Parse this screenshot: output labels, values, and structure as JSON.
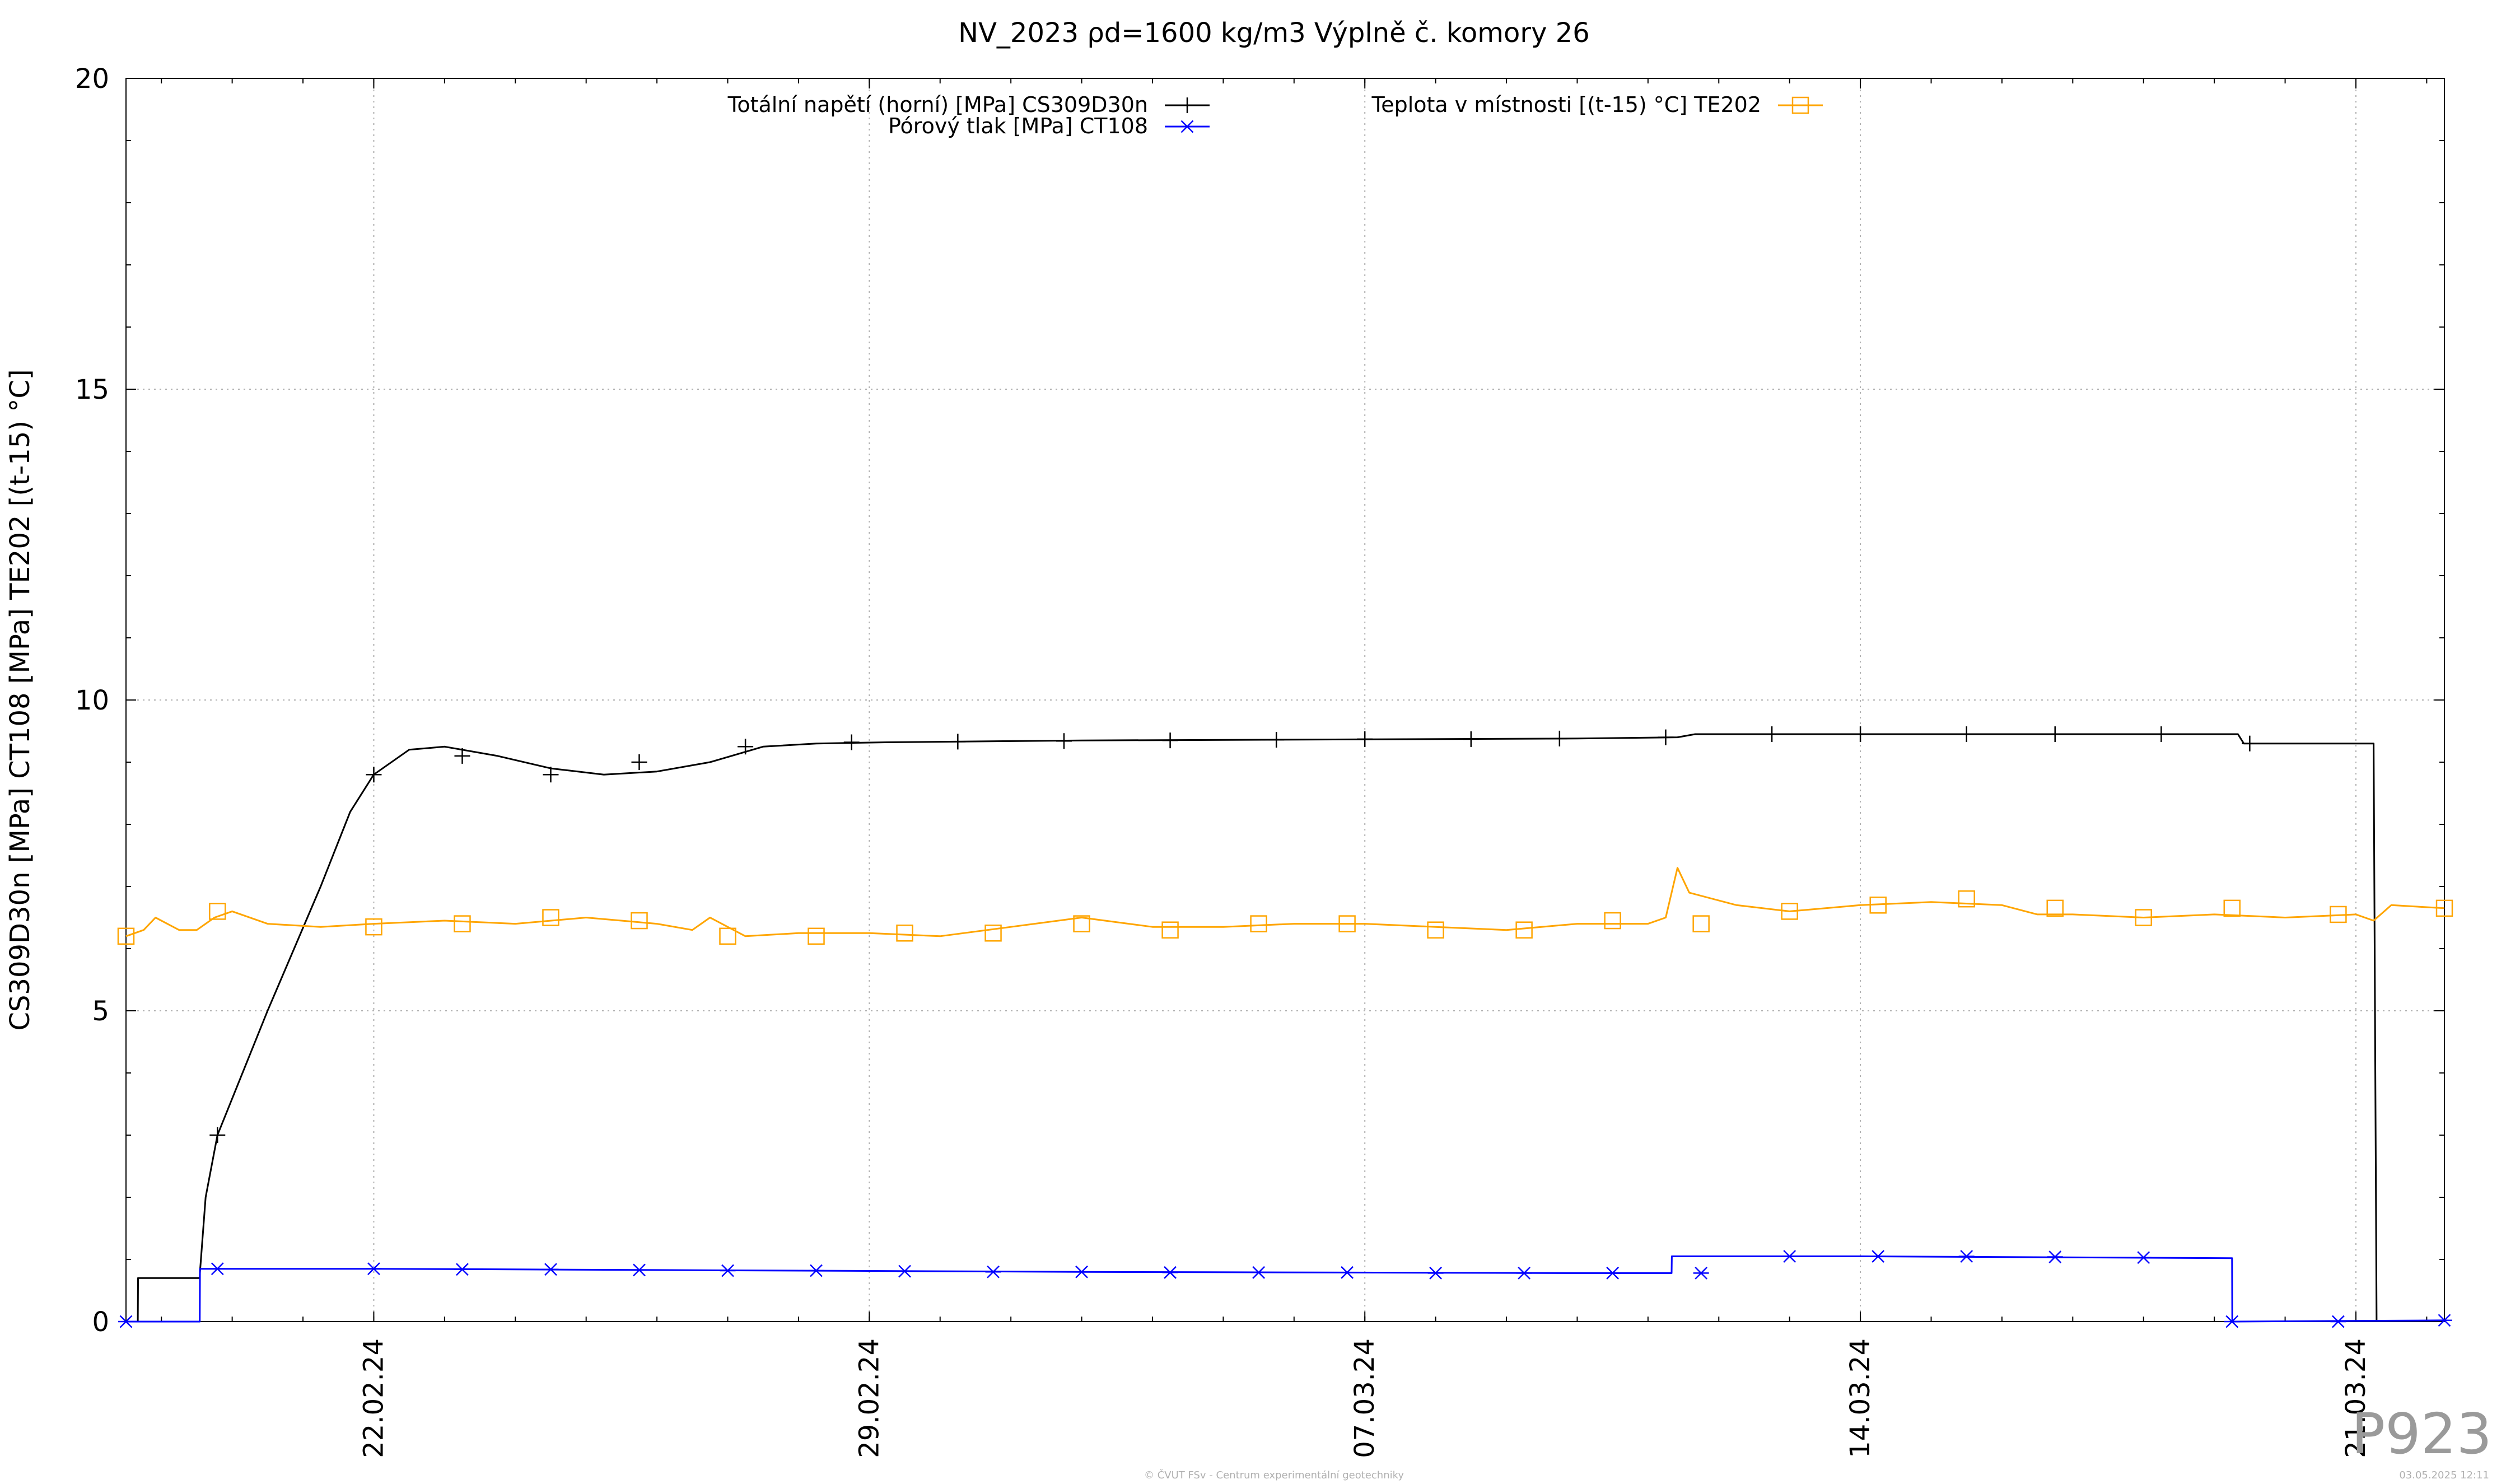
{
  "chart_data": {
    "type": "line",
    "title": "NV_2023 ρd=1600 kg/m3 Výplně č. komory 26",
    "ylabel": "CS309D30n [MPa] CT108 [MPa] TE202 [(t-15) °C]",
    "xlabel": "",
    "ylim": [
      0,
      20
    ],
    "yticks": [
      0,
      5,
      10,
      15,
      20
    ],
    "xlim": [
      "2024-02-18 12:00",
      "2024-03-22 06:00"
    ],
    "xticks": [
      "22.02.24",
      "29.02.24",
      "07.03.24",
      "14.03.24",
      "21.03.24"
    ],
    "xtick_dates": [
      "2024-02-22",
      "2024-02-29",
      "2024-03-07",
      "2024-03-14",
      "2024-03-21"
    ],
    "grid": true,
    "legend_position": "top",
    "series": [
      {
        "name": "Totální napětí (horní) [MPa] CS309D30n",
        "color": "#000000",
        "marker": "plus",
        "points": [
          [
            "2024-02-18 12:00",
            0
          ],
          [
            "2024-02-18 16:00",
            0
          ],
          [
            "2024-02-18 16:05",
            0.7
          ],
          [
            "2024-02-19 13:00",
            0.7
          ],
          [
            "2024-02-19 13:05",
            0.8
          ],
          [
            "2024-02-19 15:00",
            2.0
          ],
          [
            "2024-02-19 19:00",
            3.0
          ],
          [
            "2024-02-20 12:00",
            5.0
          ],
          [
            "2024-02-21 06:00",
            7.0
          ],
          [
            "2024-02-21 16:00",
            8.2
          ],
          [
            "2024-02-22 00:00",
            8.8
          ],
          [
            "2024-02-22 12:00",
            9.2
          ],
          [
            "2024-02-23 00:00",
            9.25
          ],
          [
            "2024-02-23 18:00",
            9.1
          ],
          [
            "2024-02-24 12:00",
            8.9
          ],
          [
            "2024-02-25 06:00",
            8.8
          ],
          [
            "2024-02-26 00:00",
            8.85
          ],
          [
            "2024-02-26 18:00",
            9.0
          ],
          [
            "2024-02-27 12:00",
            9.25
          ],
          [
            "2024-02-28 06:00",
            9.3
          ],
          [
            "2024-02-29 06:00",
            9.32
          ],
          [
            "2024-03-03 00:00",
            9.35
          ],
          [
            "2024-03-10 00:00",
            9.38
          ],
          [
            "2024-03-11 10:00",
            9.4
          ],
          [
            "2024-03-11 16:00",
            9.45
          ],
          [
            "2024-03-14 00:00",
            9.45
          ],
          [
            "2024-03-19 08:00",
            9.45
          ],
          [
            "2024-03-19 10:00",
            9.3
          ],
          [
            "2024-03-21 06:00",
            9.3
          ],
          [
            "2024-03-21 07:00",
            0
          ]
        ],
        "marker_points": [
          [
            "2024-02-19 19:00",
            3.0
          ],
          [
            "2024-02-22 00:00",
            8.8
          ],
          [
            "2024-02-23 06:00",
            9.1
          ],
          [
            "2024-02-24 12:00",
            8.8
          ],
          [
            "2024-02-25 18:00",
            9.0
          ],
          [
            "2024-02-27 06:00",
            9.25
          ],
          [
            "2024-02-28 18:00",
            9.32
          ],
          [
            "2024-03-01 06:00",
            9.33
          ],
          [
            "2024-03-02 18:00",
            9.34
          ],
          [
            "2024-03-04 06:00",
            9.35
          ],
          [
            "2024-03-05 18:00",
            9.36
          ],
          [
            "2024-03-07 00:00",
            9.37
          ],
          [
            "2024-03-08 12:00",
            9.37
          ],
          [
            "2024-03-09 18:00",
            9.38
          ],
          [
            "2024-03-11 06:00",
            9.4
          ],
          [
            "2024-03-12 18:00",
            9.45
          ],
          [
            "2024-03-14 00:00",
            9.45
          ],
          [
            "2024-03-15 12:00",
            9.45
          ],
          [
            "2024-03-16 18:00",
            9.45
          ],
          [
            "2024-03-18 06:00",
            9.45
          ],
          [
            "2024-03-19 12:00",
            9.3
          ]
        ]
      },
      {
        "name": "Pórový tlak [MPa] CT108",
        "color": "#0000ff",
        "marker": "star",
        "points": [
          [
            "2024-02-18 12:00",
            0
          ],
          [
            "2024-02-19 13:00",
            0
          ],
          [
            "2024-02-19 13:05",
            0.85
          ],
          [
            "2024-02-22 00:00",
            0.85
          ],
          [
            "2024-02-26 00:00",
            0.83
          ],
          [
            "2024-03-03 00:00",
            0.8
          ],
          [
            "2024-03-10 00:00",
            0.78
          ],
          [
            "2024-03-11 08:00",
            0.78
          ],
          [
            "2024-03-11 08:05",
            1.05
          ],
          [
            "2024-03-14 00:00",
            1.05
          ],
          [
            "2024-03-19 06:00",
            1.02
          ],
          [
            "2024-03-19 06:05",
            0
          ],
          [
            "2024-03-22 06:00",
            0.02
          ]
        ],
        "marker_points": [
          [
            "2024-02-18 12:00",
            0
          ],
          [
            "2024-02-19 19:00",
            0.85
          ],
          [
            "2024-02-22 00:00",
            0.85
          ],
          [
            "2024-02-23 06:00",
            0.84
          ],
          [
            "2024-02-24 12:00",
            0.84
          ],
          [
            "2024-02-25 18:00",
            0.83
          ],
          [
            "2024-02-27 00:00",
            0.82
          ],
          [
            "2024-02-28 06:00",
            0.82
          ],
          [
            "2024-02-29 12:00",
            0.81
          ],
          [
            "2024-03-01 18:00",
            0.8
          ],
          [
            "2024-03-03 00:00",
            0.8
          ],
          [
            "2024-03-04 06:00",
            0.79
          ],
          [
            "2024-03-05 12:00",
            0.79
          ],
          [
            "2024-03-06 18:00",
            0.79
          ],
          [
            "2024-03-08 00:00",
            0.78
          ],
          [
            "2024-03-09 06:00",
            0.78
          ],
          [
            "2024-03-10 12:00",
            0.78
          ],
          [
            "2024-03-11 18:00",
            0.78
          ],
          [
            "2024-03-13 00:00",
            1.05
          ],
          [
            "2024-03-14 06:00",
            1.05
          ],
          [
            "2024-03-15 12:00",
            1.05
          ],
          [
            "2024-03-16 18:00",
            1.04
          ],
          [
            "2024-03-18 00:00",
            1.03
          ],
          [
            "2024-03-19 06:00",
            0
          ],
          [
            "2024-03-20 18:00",
            0
          ],
          [
            "2024-03-22 06:00",
            0.02
          ]
        ]
      },
      {
        "name": "Teplota v místnosti [(t-15) °C] TE202",
        "color": "#ffa500",
        "marker": "square",
        "points": [
          [
            "2024-02-18 12:00",
            6.2
          ],
          [
            "2024-02-18 18:00",
            6.3
          ],
          [
            "2024-02-18 22:00",
            6.5
          ],
          [
            "2024-02-19 06:00",
            6.3
          ],
          [
            "2024-02-19 12:00",
            6.3
          ],
          [
            "2024-02-19 18:00",
            6.5
          ],
          [
            "2024-02-20 00:00",
            6.6
          ],
          [
            "2024-02-20 12:00",
            6.4
          ],
          [
            "2024-02-21 06:00",
            6.35
          ],
          [
            "2024-02-22 00:00",
            6.4
          ],
          [
            "2024-02-23 00:00",
            6.45
          ],
          [
            "2024-02-24 00:00",
            6.4
          ],
          [
            "2024-02-25 00:00",
            6.5
          ],
          [
            "2024-02-26 00:00",
            6.4
          ],
          [
            "2024-02-26 12:00",
            6.3
          ],
          [
            "2024-02-26 18:00",
            6.5
          ],
          [
            "2024-02-27 06:00",
            6.2
          ],
          [
            "2024-02-28 00:00",
            6.25
          ],
          [
            "2024-02-29 00:00",
            6.25
          ],
          [
            "2024-03-01 00:00",
            6.2
          ],
          [
            "2024-03-02 00:00",
            6.35
          ],
          [
            "2024-03-03 00:00",
            6.5
          ],
          [
            "2024-03-04 00:00",
            6.35
          ],
          [
            "2024-03-05 00:00",
            6.35
          ],
          [
            "2024-03-06 00:00",
            6.4
          ],
          [
            "2024-03-07 00:00",
            6.4
          ],
          [
            "2024-03-08 00:00",
            6.35
          ],
          [
            "2024-03-09 00:00",
            6.3
          ],
          [
            "2024-03-10 00:00",
            6.4
          ],
          [
            "2024-03-11 00:00",
            6.4
          ],
          [
            "2024-03-11 06:00",
            6.5
          ],
          [
            "2024-03-11 10:00",
            7.3
          ],
          [
            "2024-03-11 14:00",
            6.9
          ],
          [
            "2024-03-12 06:00",
            6.7
          ],
          [
            "2024-03-13 00:00",
            6.6
          ],
          [
            "2024-03-14 00:00",
            6.7
          ],
          [
            "2024-03-15 00:00",
            6.75
          ],
          [
            "2024-03-16 00:00",
            6.7
          ],
          [
            "2024-03-16 12:00",
            6.55
          ],
          [
            "2024-03-17 00:00",
            6.55
          ],
          [
            "2024-03-18 00:00",
            6.5
          ],
          [
            "2024-03-19 00:00",
            6.55
          ],
          [
            "2024-03-20 00:00",
            6.5
          ],
          [
            "2024-03-21 00:00",
            6.55
          ],
          [
            "2024-03-21 06:00",
            6.45
          ],
          [
            "2024-03-21 12:00",
            6.7
          ],
          [
            "2024-03-22 06:00",
            6.65
          ]
        ],
        "marker_points": [
          [
            "2024-02-18 12:00",
            6.2
          ],
          [
            "2024-02-19 19:00",
            6.6
          ],
          [
            "2024-02-22 00:00",
            6.35
          ],
          [
            "2024-02-23 06:00",
            6.4
          ],
          [
            "2024-02-24 12:00",
            6.5
          ],
          [
            "2024-02-25 18:00",
            6.45
          ],
          [
            "2024-02-27 00:00",
            6.2
          ],
          [
            "2024-02-28 06:00",
            6.2
          ],
          [
            "2024-02-29 12:00",
            6.25
          ],
          [
            "2024-03-01 18:00",
            6.25
          ],
          [
            "2024-03-03 00:00",
            6.4
          ],
          [
            "2024-03-04 06:00",
            6.3
          ],
          [
            "2024-03-05 12:00",
            6.4
          ],
          [
            "2024-03-06 18:00",
            6.4
          ],
          [
            "2024-03-08 00:00",
            6.3
          ],
          [
            "2024-03-09 06:00",
            6.3
          ],
          [
            "2024-03-10 12:00",
            6.45
          ],
          [
            "2024-03-11 18:00",
            6.4
          ],
          [
            "2024-03-13 00:00",
            6.6
          ],
          [
            "2024-03-14 06:00",
            6.7
          ],
          [
            "2024-03-15 12:00",
            6.8
          ],
          [
            "2024-03-16 18:00",
            6.65
          ],
          [
            "2024-03-18 00:00",
            6.5
          ],
          [
            "2024-03-19 06:00",
            6.65
          ],
          [
            "2024-03-20 18:00",
            6.55
          ],
          [
            "2024-03-22 06:00",
            6.65
          ]
        ]
      }
    ]
  },
  "watermark": "P923",
  "credit": "© ČVUT FSv - Centrum experimentální geotechniky",
  "timestamp": "03.05.2025 12:11"
}
